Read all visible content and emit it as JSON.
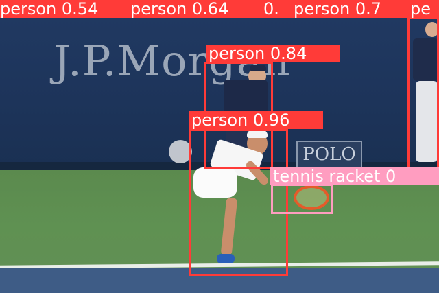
{
  "background": {
    "sponsor_text": "J.P.Morgan",
    "polo_text": "POLO"
  },
  "detections": [
    {
      "id": "det-1",
      "label": "person 0.54"
    },
    {
      "id": "det-2",
      "label": "person 0.64"
    },
    {
      "id": "det-3",
      "label": "0."
    },
    {
      "id": "det-4",
      "label": "person 0.7"
    },
    {
      "id": "det-5",
      "label": "pe"
    },
    {
      "id": "det-6",
      "label": "person 0.84"
    },
    {
      "id": "det-7",
      "label": "person 0.96"
    },
    {
      "id": "det-8",
      "label": "tennis racket 0"
    }
  ],
  "colors": {
    "person_box": "#ff3b38",
    "racket_box": "#ff9dc0"
  }
}
